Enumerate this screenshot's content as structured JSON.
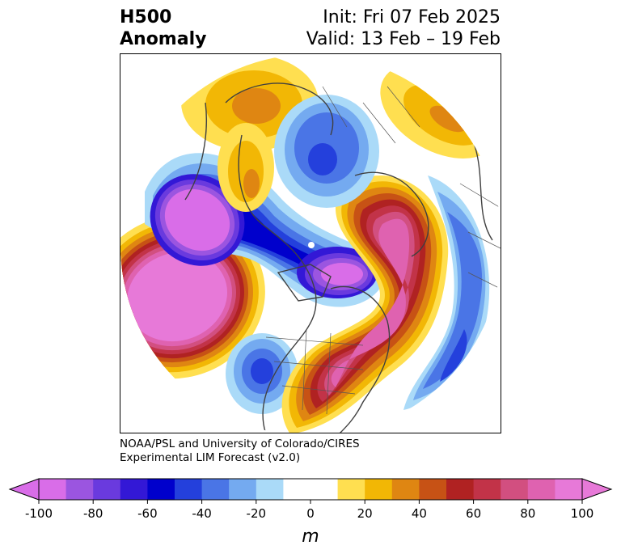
{
  "header": {
    "title_line1": "H500",
    "title_line2": "Anomaly",
    "init_text": "Init: Fri 07 Feb 2025",
    "valid_text": "Valid: 13 Feb – 19 Feb"
  },
  "credit": {
    "line1": "NOAA/PSL and University of Colorado/CIRES",
    "line2": "Experimental LIM Forecast (v2.0)"
  },
  "colorbar": {
    "unit_label": "m",
    "tick_labels": [
      "-100",
      "-80",
      "-60",
      "-40",
      "-20",
      "0",
      "20",
      "40",
      "60",
      "80",
      "100"
    ],
    "colors": [
      "#d96de8",
      "#9b55e0",
      "#6a3ade",
      "#3318d6",
      "#0000cc",
      "#2440dc",
      "#4a75e6",
      "#74aaf0",
      "#aadaf8",
      "#ffffff",
      "#ffffff",
      "#ffdf50",
      "#f2b705",
      "#df8612",
      "#c75215",
      "#b02222",
      "#c23348",
      "#d24f80",
      "#df62b0",
      "#e779d8"
    ],
    "extend_low_color": "#d96de8",
    "extend_high_color": "#e779d8"
  },
  "map": {
    "projection": "north-polar-stereographic",
    "field": "500 hPa geopotential height anomaly"
  }
}
